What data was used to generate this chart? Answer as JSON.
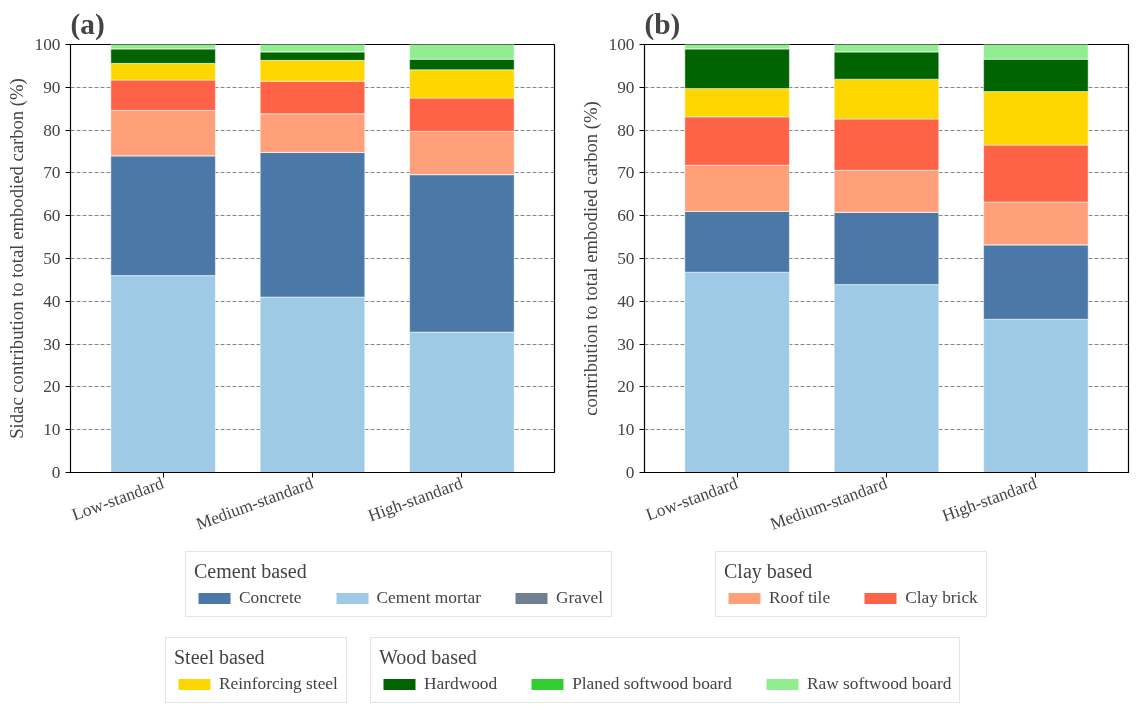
{
  "chart_data": [
    {
      "type": "bar",
      "title": "(a)",
      "ylabel": "Sidac contribution to total embodied carbon (%)",
      "categories": [
        "Low-standard",
        "Medium-standard",
        "High-standard"
      ],
      "stacked": true,
      "ylim": [
        0,
        100
      ],
      "yticks": [
        0,
        10,
        20,
        30,
        40,
        50,
        60,
        70,
        80,
        90,
        100
      ],
      "grid": "y",
      "legend": "bottom",
      "legend_title": [
        "Cement based",
        "Clay based",
        "Steel based",
        "Wood based"
      ],
      "series": [
        {
          "name": "Concrete",
          "color": "#4c78a8",
          "values": [
            28,
            33.8,
            36.8
          ]
        },
        {
          "name": "Cement mortar",
          "color": "#9ecae6",
          "values": [
            46,
            41,
            32.8
          ]
        },
        {
          "name": "Gravel",
          "color": "#708090",
          "values": [
            0,
            0,
            0
          ]
        },
        {
          "name": "Roof tile",
          "color": "#ffa07a",
          "values": [
            10.6,
            9,
            10.1
          ]
        },
        {
          "name": "Clay brick",
          "color": "#ff6347",
          "values": [
            7.1,
            7.6,
            7.8
          ]
        },
        {
          "name": "Reinforcing steel",
          "color": "#ffd700",
          "values": [
            3.9,
            4.9,
            6.6
          ]
        },
        {
          "name": "Hardwood",
          "color": "#006400",
          "values": [
            3.4,
            2,
            2.5
          ]
        },
        {
          "name": "Planed softwood board",
          "color": "#32cd32",
          "values": [
            0,
            0,
            0
          ]
        },
        {
          "name": "Raw softwood board",
          "color": "#90ee90",
          "values": [
            1,
            1.7,
            3.4
          ]
        }
      ]
    },
    {
      "type": "bar",
      "title": "(b)",
      "ylabel": "contribution to total embodied carbon (%)",
      "categories": [
        "Low-standard",
        "Medium-standard",
        "High-standard"
      ],
      "stacked": true,
      "ylim": [
        0,
        100
      ],
      "yticks": [
        0,
        10,
        20,
        30,
        40,
        50,
        60,
        70,
        80,
        90,
        100
      ],
      "grid": "y",
      "series": [
        {
          "color": "#4c78a8",
          "values": [
            14.2,
            16.9,
            17.4
          ]
        },
        {
          "color": "#9ecae6",
          "values": [
            46.8,
            43.9,
            35.8
          ]
        },
        {
          "color": "#708090",
          "values": [
            0,
            0,
            0
          ]
        },
        {
          "color": "#ffa07a",
          "values": [
            10.8,
            9.8,
            10
          ]
        },
        {
          "color": "#ff6347",
          "values": [
            11.3,
            12,
            13.3
          ]
        },
        {
          "color": "#ffd700",
          "values": [
            6.6,
            9.3,
            12.5
          ]
        },
        {
          "color": "#006400",
          "values": [
            9.3,
            6.4,
            7.6
          ]
        },
        {
          "color": "#32cd32",
          "values": [
            0,
            0,
            0
          ]
        },
        {
          "color": "#90ee90",
          "values": [
            1,
            1.7,
            3.4
          ]
        }
      ]
    }
  ]
}
